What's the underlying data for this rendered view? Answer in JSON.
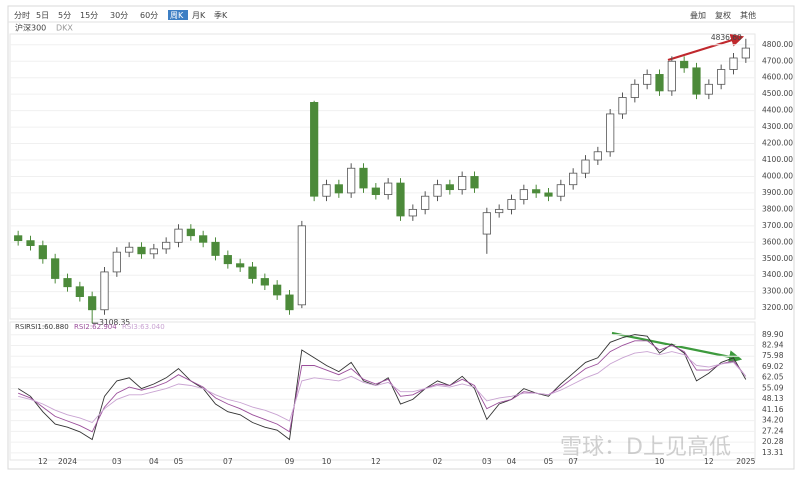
{
  "toolbar": {
    "periods": [
      "分时",
      "5日",
      "5分",
      "15分",
      "30分",
      "60分",
      "周K",
      "月K",
      "季K"
    ],
    "active_period": "周K",
    "right_menu": [
      "叠加",
      "复权",
      "其他"
    ],
    "symbol": "沪深300",
    "indicator": "DKX"
  },
  "watermark": "雪球：D上见高低",
  "chart_data": [
    {
      "type": "candlestick",
      "categories": [
        null,
        null,
        "12",
        null,
        "2024",
        null,
        null,
        null,
        "03",
        null,
        null,
        "04",
        null,
        "05",
        null,
        null,
        null,
        "07",
        null,
        null,
        null,
        null,
        "09",
        null,
        null,
        "10",
        null,
        null,
        null,
        "12",
        null,
        null,
        null,
        null,
        "02",
        null,
        null,
        null,
        "03",
        null,
        "04",
        null,
        null,
        "05",
        null,
        "07",
        null,
        null,
        null,
        null,
        null,
        null,
        "10",
        null,
        null,
        null,
        "12",
        null,
        null,
        "2025"
      ],
      "open": [
        3640,
        3610,
        3580,
        3500,
        3380,
        3330,
        3270,
        3190,
        3420,
        3540,
        3570,
        3530,
        3560,
        3600,
        3680,
        3640,
        3600,
        3520,
        3470,
        3450,
        3380,
        3340,
        3280,
        3220,
        4450,
        3880,
        3950,
        3900,
        4050,
        3930,
        3890,
        3960,
        3760,
        3800,
        3880,
        3950,
        3920,
        4000,
        3650,
        3780,
        3800,
        3860,
        3920,
        3900,
        3880,
        3950,
        4020,
        4100,
        4150,
        4380,
        4480,
        4560,
        4620,
        4520,
        4700,
        4660,
        4500,
        4560,
        4650,
        4720
      ],
      "high": [
        3670,
        3640,
        3610,
        3530,
        3410,
        3360,
        3300,
        3450,
        3570,
        3600,
        3600,
        3590,
        3630,
        3710,
        3710,
        3670,
        3630,
        3550,
        3500,
        3480,
        3410,
        3370,
        3310,
        3730,
        4460,
        3980,
        3980,
        4080,
        4080,
        3960,
        3990,
        3990,
        3830,
        3910,
        3980,
        3980,
        4030,
        4030,
        3810,
        3830,
        3890,
        3950,
        3950,
        3930,
        3980,
        4050,
        4130,
        4180,
        4410,
        4510,
        4590,
        4650,
        4650,
        4730,
        4730,
        4690,
        4590,
        4680,
        4750,
        4836.6
      ],
      "low": [
        3580,
        3550,
        3470,
        3350,
        3300,
        3240,
        3108.35,
        3160,
        3390,
        3510,
        3500,
        3500,
        3530,
        3570,
        3610,
        3570,
        3490,
        3440,
        3420,
        3350,
        3310,
        3250,
        3160,
        3200,
        3850,
        3850,
        3870,
        3870,
        3900,
        3860,
        3860,
        3730,
        3730,
        3770,
        3850,
        3890,
        3890,
        3900,
        3530,
        3750,
        3770,
        3830,
        3870,
        3850,
        3850,
        3920,
        3990,
        4070,
        4120,
        4350,
        4450,
        4530,
        4490,
        4490,
        4630,
        4470,
        4470,
        4530,
        4620,
        4690
      ],
      "close": [
        3610,
        3580,
        3500,
        3380,
        3330,
        3270,
        3190,
        3420,
        3540,
        3570,
        3530,
        3560,
        3600,
        3680,
        3640,
        3600,
        3520,
        3470,
        3450,
        3380,
        3340,
        3280,
        3190,
        3700,
        3880,
        3950,
        3900,
        4050,
        3930,
        3890,
        3960,
        3760,
        3800,
        3880,
        3950,
        3920,
        4000,
        3930,
        3780,
        3800,
        3860,
        3920,
        3900,
        3880,
        3950,
        4020,
        4100,
        4150,
        4380,
        4480,
        4560,
        4620,
        4520,
        4700,
        4660,
        4500,
        4560,
        4650,
        4720,
        4780
      ],
      "low_label": "3108.35",
      "high_label": "4836.60",
      "up_color": "#ffffff",
      "down_color": "#4c8a3a",
      "outline_color": "#555555",
      "ylim": [
        3140,
        4890
      ],
      "yticks": [
        {
          "value": 3200,
          "label": "3200.00"
        },
        {
          "value": 3300,
          "label": "3300.00"
        },
        {
          "value": 3400,
          "label": "3400.00"
        },
        {
          "value": 3500,
          "label": "3500.00"
        },
        {
          "value": 3600,
          "label": "3600.00"
        },
        {
          "value": 3700,
          "label": "3700.00"
        },
        {
          "value": 3800,
          "label": "3800.00"
        },
        {
          "value": 3900,
          "label": "3900.00"
        },
        {
          "value": 4000,
          "label": "4000.00"
        },
        {
          "value": 4100,
          "label": "4100.00"
        },
        {
          "value": 4200,
          "label": "4200.00"
        },
        {
          "value": 4300,
          "label": "4300.00"
        },
        {
          "value": 4400,
          "label": "4400.00"
        },
        {
          "value": 4500,
          "label": "4500.00"
        },
        {
          "value": 4600,
          "label": "4600.00"
        },
        {
          "value": 4700,
          "label": "4700.00"
        },
        {
          "value": 4800,
          "label": "4800.00"
        }
      ]
    },
    {
      "type": "line",
      "title": "RSI",
      "series": [
        {
          "name": "RSI1:60.880",
          "color": "#333333",
          "values": [
            55,
            50,
            40,
            32,
            30,
            27,
            22,
            50,
            60,
            62,
            55,
            58,
            62,
            68,
            60,
            55,
            45,
            40,
            38,
            33,
            30,
            28,
            22,
            80,
            75,
            70,
            66,
            72,
            60,
            57,
            62,
            45,
            48,
            55,
            60,
            57,
            63,
            55,
            35,
            45,
            48,
            55,
            52,
            50,
            58,
            65,
            72,
            75,
            85,
            88,
            90,
            89,
            78,
            84,
            78,
            60,
            65,
            72,
            75,
            60.88
          ]
        },
        {
          "name": "RSI2:62.904",
          "color": "#9b4f9b",
          "values": [
            52,
            49,
            43,
            37,
            34,
            31,
            27,
            43,
            52,
            56,
            54,
            56,
            59,
            64,
            60,
            56,
            49,
            45,
            42,
            38,
            35,
            32,
            27,
            70,
            70,
            67,
            64,
            68,
            61,
            58,
            61,
            50,
            51,
            55,
            58,
            57,
            61,
            57,
            42,
            46,
            48,
            53,
            52,
            51,
            56,
            62,
            68,
            71,
            79,
            83,
            86,
            86,
            80,
            83,
            79,
            67,
            67,
            71,
            73,
            62.904
          ]
        },
        {
          "name": "RSI3:63.040",
          "color": "#c9a3d2",
          "values": [
            50,
            48,
            45,
            41,
            38,
            36,
            33,
            42,
            48,
            51,
            51,
            53,
            55,
            58,
            57,
            55,
            51,
            48,
            46,
            43,
            41,
            38,
            34,
            60,
            62,
            61,
            60,
            63,
            59,
            57,
            59,
            53,
            53,
            55,
            57,
            56,
            58,
            56,
            47,
            49,
            50,
            52,
            52,
            51,
            54,
            58,
            62,
            65,
            71,
            75,
            78,
            79,
            77,
            79,
            77,
            70,
            69,
            71,
            72,
            63.04
          ]
        }
      ],
      "ylim": [
        10,
        93
      ],
      "yticks": [
        {
          "value": 13.31,
          "label": "13.31"
        },
        {
          "value": 20.28,
          "label": "20.28"
        },
        {
          "value": 27.24,
          "label": "27.24"
        },
        {
          "value": 34.2,
          "label": "34.20"
        },
        {
          "value": 41.16,
          "label": "41.16"
        },
        {
          "value": 48.13,
          "label": "48.13"
        },
        {
          "value": 55.09,
          "label": "55.09"
        },
        {
          "value": 62.05,
          "label": "62.05"
        },
        {
          "value": 69.02,
          "label": "69.02"
        },
        {
          "value": 75.98,
          "label": "75.98"
        },
        {
          "value": 82.94,
          "label": "82.94"
        },
        {
          "value": 89.9,
          "label": "89.90"
        }
      ]
    }
  ]
}
